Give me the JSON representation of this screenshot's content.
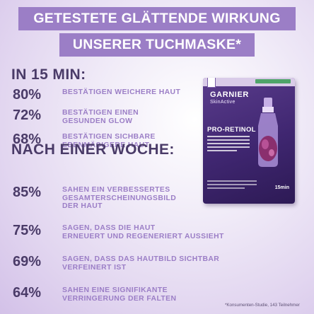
{
  "headline": {
    "line1": "GETESTETE GLÄTTENDE WIRKUNG",
    "line2": "UNSERER TUCHMASKE*"
  },
  "section1": {
    "title": "IN 15 MIN:",
    "stats": [
      {
        "pct": "80%",
        "text": "BESTÄTIGEN WEICHERE HAUT"
      },
      {
        "pct": "72%",
        "text": "BESTÄTIGEN EINEN\nGESUNDEN GLOW"
      },
      {
        "pct": "68%",
        "text": "BESTÄTIGEN SICHBARE\nEBENMÄẞIGERE HAUT"
      }
    ]
  },
  "section2": {
    "title": "NACH EINER WOCHE:",
    "stats": [
      {
        "pct": "85%",
        "text": "SAHEN EIN VERBESSERTES\nGESAMTERSCHEINUNGSBILD\nDER HAUT"
      },
      {
        "pct": "75%",
        "text": "SAGEN, DASS DIE HAUT\nERNEUERT UND REGENERIERT AUSSIEHT"
      },
      {
        "pct": "69%",
        "text": "SAGEN, DASS DAS HAUTBILD SICHTBAR\nVERFEINERT IST"
      },
      {
        "pct": "64%",
        "text": "SAHEN EINE SIGNIFIKANTE\nVERRINGERUNG DER FALTEN"
      }
    ]
  },
  "footnote": "*Konsumenten-Studie, 143 Teilnehmer",
  "product": {
    "brand": "GARNIER",
    "sub_brand": "SkinActive",
    "name": "PRO-RETINOL",
    "count": "15min"
  },
  "colors": {
    "banner": "#9b7ec6",
    "heading": "#4a3b68",
    "desc": "#9b7ec6",
    "pack": "#3f2670"
  }
}
